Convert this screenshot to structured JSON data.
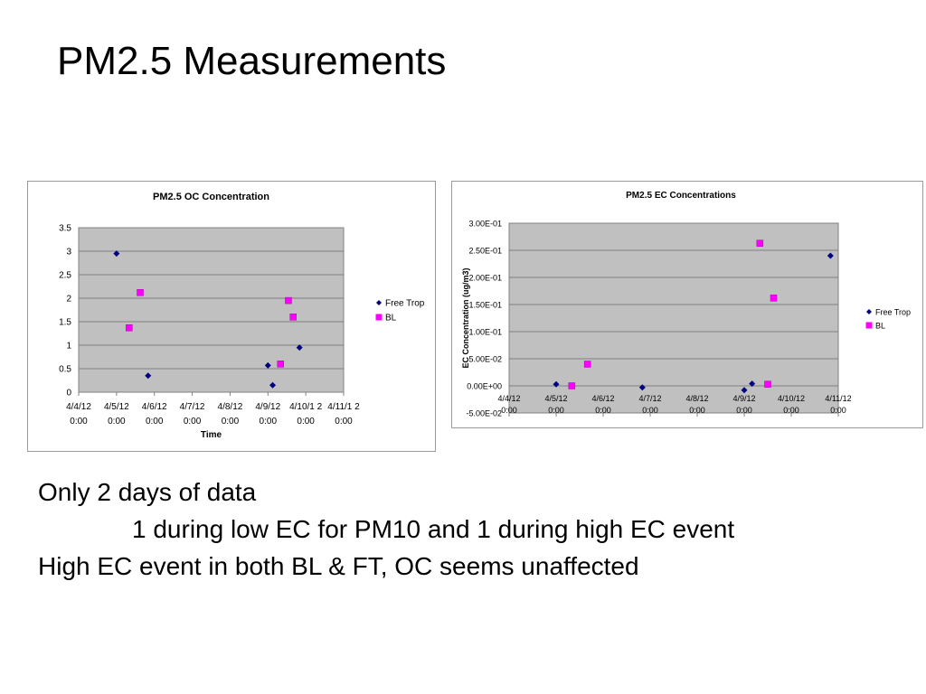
{
  "slide": {
    "title": "PM2.5 Measurements",
    "lines": [
      "Only 2 days of data",
      "1 during low EC for PM10 and 1 during high EC event",
      "High EC event in both BL & FT, OC seems unaffected"
    ]
  },
  "colors": {
    "plot_area": "#c0c0c0",
    "free_trop": "#000080",
    "bl": "#ff00ff",
    "gridline": "#808080"
  },
  "chart_data": [
    {
      "type": "scatter",
      "title": "PM2.5 OC Concentration",
      "xlabel": "Time",
      "ylabel": "",
      "x_ticks": [
        "4/4/12 0:00",
        "4/5/12 0:00",
        "4/6/12 0:00",
        "4/7/12 0:00",
        "4/8/12 0:00",
        "4/9/12 0:00",
        "4/10/1 2 0:00",
        "4/11/1 2 0:00"
      ],
      "xlim": [
        "2012-04-04 00:00",
        "2012-04-11 00:00"
      ],
      "y_ticks": [
        "0",
        "0.5",
        "1",
        "1.5",
        "2",
        "2.5",
        "3",
        "3.5"
      ],
      "ylim": [
        0,
        3.5
      ],
      "grid": true,
      "legend_position": "right",
      "series": [
        {
          "name": "Free Trop",
          "color": "#000080",
          "marker": "diamond",
          "points": [
            {
              "x": "2012-04-05 00:00",
              "y": 2.95
            },
            {
              "x": "2012-04-05 20:00",
              "y": 0.35
            },
            {
              "x": "2012-04-09 00:00",
              "y": 0.57
            },
            {
              "x": "2012-04-09 03:00",
              "y": 0.15
            },
            {
              "x": "2012-04-09 20:00",
              "y": 0.95
            }
          ]
        },
        {
          "name": "BL",
          "color": "#ff00ff",
          "marker": "square",
          "points": [
            {
              "x": "2012-04-05 08:00",
              "y": 1.37
            },
            {
              "x": "2012-04-05 15:00",
              "y": 2.12
            },
            {
              "x": "2012-04-09 08:00",
              "y": 0.6
            },
            {
              "x": "2012-04-09 13:00",
              "y": 1.95
            },
            {
              "x": "2012-04-09 16:00",
              "y": 1.6
            }
          ]
        }
      ]
    },
    {
      "type": "scatter",
      "title": "PM2.5 EC Concentrations",
      "xlabel": "",
      "ylabel": "EC Concentration (ug/m3)",
      "x_ticks": [
        "4/4/12 0:00",
        "4/5/12 0:00",
        "4/6/12 0:00",
        "4/7/12 0:00",
        "4/8/12 0:00",
        "4/9/12 0:00",
        "4/10/12 0:00",
        "4/11/12 0:00"
      ],
      "xlim": [
        "2012-04-04 00:00",
        "2012-04-11 00:00"
      ],
      "y_ticks": [
        "-5.00E-02",
        "0.00E+00",
        "5.00E-02",
        "1.00E-01",
        "1.50E-01",
        "2.00E-01",
        "2.50E-01",
        "3.00E-01"
      ],
      "ylim": [
        -0.05,
        0.3
      ],
      "grid": true,
      "legend_position": "right",
      "series": [
        {
          "name": "Free Trop",
          "color": "#000080",
          "marker": "diamond",
          "points": [
            {
              "x": "2012-04-05 00:00",
              "y": 0.003
            },
            {
              "x": "2012-04-06 20:00",
              "y": -0.003
            },
            {
              "x": "2012-04-09 00:00",
              "y": -0.008
            },
            {
              "x": "2012-04-09 04:00",
              "y": 0.004
            },
            {
              "x": "2012-04-10 20:00",
              "y": 0.24
            }
          ]
        },
        {
          "name": "BL",
          "color": "#ff00ff",
          "marker": "square",
          "points": [
            {
              "x": "2012-04-05 08:00",
              "y": 0.0
            },
            {
              "x": "2012-04-05 16:00",
              "y": 0.04
            },
            {
              "x": "2012-04-09 08:00",
              "y": 0.263
            },
            {
              "x": "2012-04-09 12:00",
              "y": 0.003
            },
            {
              "x": "2012-04-09 15:00",
              "y": 0.162
            }
          ]
        }
      ]
    }
  ]
}
